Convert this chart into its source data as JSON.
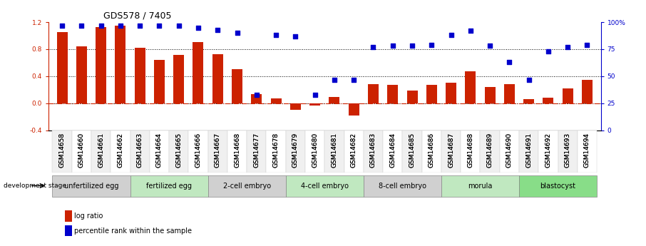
{
  "title": "GDS578 / 7405",
  "categories": [
    "GSM14658",
    "GSM14660",
    "GSM14661",
    "GSM14662",
    "GSM14663",
    "GSM14664",
    "GSM14665",
    "GSM14666",
    "GSM14667",
    "GSM14668",
    "GSM14677",
    "GSM14678",
    "GSM14679",
    "GSM14680",
    "GSM14681",
    "GSM14682",
    "GSM14683",
    "GSM14684",
    "GSM14685",
    "GSM14686",
    "GSM14687",
    "GSM14688",
    "GSM14689",
    "GSM14690",
    "GSM14691",
    "GSM14692",
    "GSM14693",
    "GSM14694"
  ],
  "bar_values": [
    1.05,
    0.84,
    1.13,
    1.15,
    0.82,
    0.64,
    0.72,
    0.91,
    0.73,
    0.5,
    0.14,
    0.07,
    -0.1,
    -0.03,
    0.09,
    -0.18,
    0.28,
    0.27,
    0.19,
    0.27,
    0.3,
    0.47,
    0.24,
    0.28,
    0.06,
    0.08,
    0.22,
    0.35
  ],
  "percentile_values": [
    97,
    97,
    97,
    97,
    97,
    97,
    97,
    95,
    93,
    90,
    33,
    88,
    87,
    33,
    47,
    47,
    77,
    78,
    78,
    79,
    88,
    92,
    78,
    63,
    47,
    73,
    77,
    79
  ],
  "bar_color": "#cc2200",
  "dot_color": "#0000cc",
  "ylim_left": [
    -0.4,
    1.2
  ],
  "ylim_right": [
    0,
    100
  ],
  "yticks_left": [
    -0.4,
    0.0,
    0.4,
    0.8,
    1.2
  ],
  "yticks_right": [
    0,
    25,
    50,
    75,
    100
  ],
  "grid_values": [
    0.8,
    0.4,
    0.0
  ],
  "stage_groups": [
    {
      "label": "unfertilized egg",
      "start": 0,
      "end": 4,
      "color": "#d0d0d0"
    },
    {
      "label": "fertilized egg",
      "start": 4,
      "end": 8,
      "color": "#c0e8c0"
    },
    {
      "label": "2-cell embryo",
      "start": 8,
      "end": 12,
      "color": "#d0d0d0"
    },
    {
      "label": "4-cell embryo",
      "start": 12,
      "end": 16,
      "color": "#c0e8c0"
    },
    {
      "label": "8-cell embryo",
      "start": 16,
      "end": 20,
      "color": "#d0d0d0"
    },
    {
      "label": "morula",
      "start": 20,
      "end": 24,
      "color": "#c0e8c0"
    },
    {
      "label": "blastocyst",
      "start": 24,
      "end": 28,
      "color": "#88dd88"
    }
  ],
  "legend_bar_label": "log ratio",
  "legend_dot_label": "percentile rank within the sample",
  "dev_stage_label": "development stage",
  "title_fontsize": 9,
  "tick_fontsize": 6.5,
  "stage_fontsize": 7,
  "legend_fontsize": 7
}
